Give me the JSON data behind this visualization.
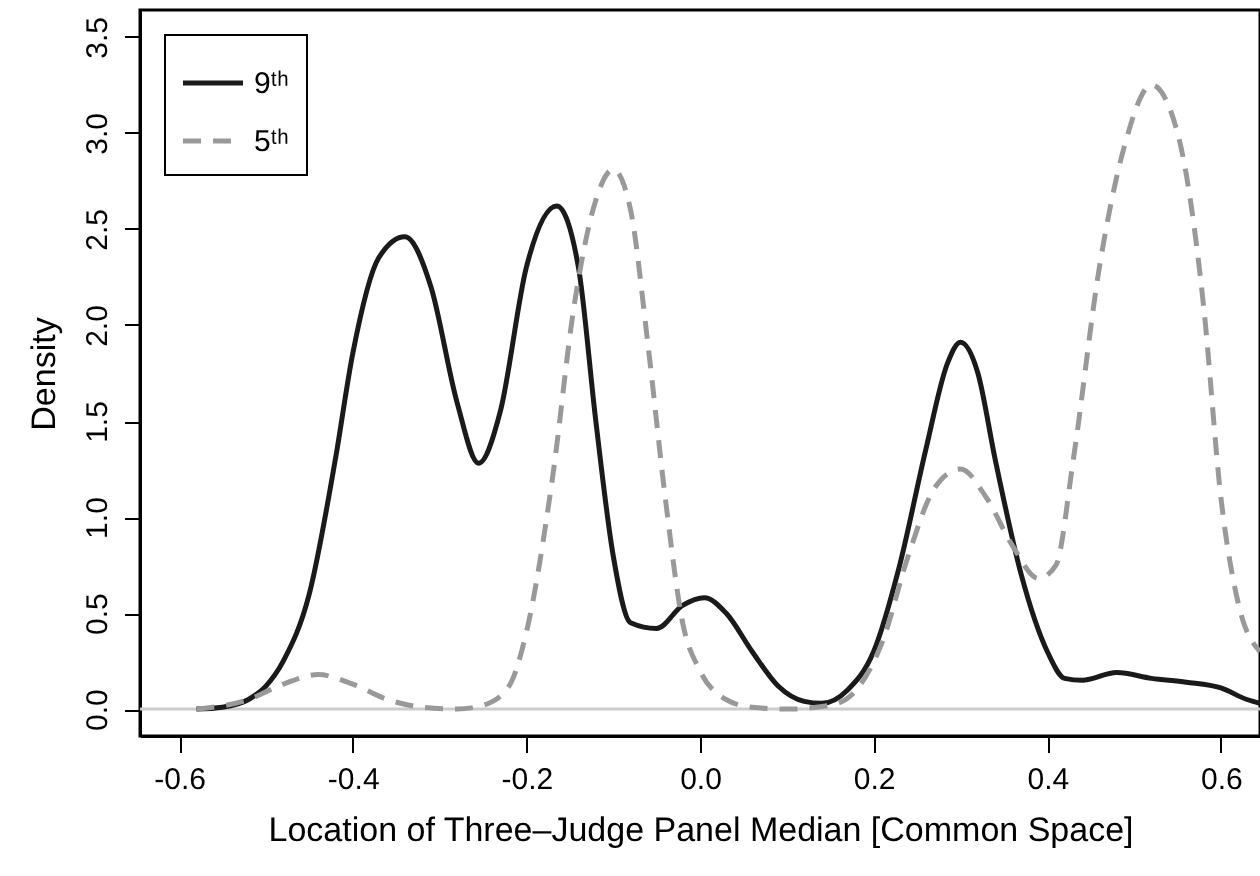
{
  "chart_data": {
    "type": "line",
    "xlabel": "Location of Three–Judge Panel Median [Common Space]",
    "ylabel": "Density",
    "xlim": [
      -0.645,
      0.645
    ],
    "xticks": [
      -0.6,
      -0.4,
      -0.2,
      {
        "value": 0,
        "label": "0.0"
      },
      0.2,
      0.4,
      0.6
    ],
    "ylim": [
      -0.14,
      3.64
    ],
    "yticks": [
      {
        "value": 0,
        "label": "0.0"
      },
      0.5,
      {
        "value": 1,
        "label": "1.0"
      },
      1.5,
      {
        "value": 2,
        "label": "2.0"
      },
      2.5,
      {
        "value": 3,
        "label": "3.0"
      },
      3.5
    ],
    "grid": false,
    "legend": "top left",
    "ref_lines": [
      {
        "axis": "y",
        "value": 0,
        "color": "#cccccc"
      }
    ],
    "series": [
      {
        "name": "9ᵗʰ",
        "color": "#1a1a1a",
        "line_style": "solid",
        "x": [
          -0.58,
          -0.55,
          -0.52,
          -0.5,
          -0.48,
          -0.45,
          -0.42,
          -0.4,
          -0.37,
          -0.34,
          -0.31,
          -0.28,
          -0.255,
          -0.23,
          -0.2,
          -0.165,
          -0.14,
          -0.12,
          -0.1,
          -0.08,
          -0.05,
          -0.02,
          0.005,
          0.03,
          0.06,
          0.09,
          0.12,
          0.14,
          0.17,
          0.2,
          0.23,
          0.26,
          0.285,
          0.3,
          0.32,
          0.34,
          0.37,
          0.4,
          0.42,
          0.44,
          0.48,
          0.52,
          0.56,
          0.6,
          0.63,
          0.645
        ],
        "values": [
          0,
          0.01,
          0.05,
          0.12,
          0.25,
          0.6,
          1.3,
          1.85,
          2.35,
          2.46,
          2.2,
          1.6,
          1.28,
          1.55,
          2.3,
          2.62,
          2.3,
          1.5,
          0.8,
          0.45,
          0.42,
          0.54,
          0.58,
          0.5,
          0.3,
          0.12,
          0.04,
          0.03,
          0.1,
          0.3,
          0.75,
          1.35,
          1.8,
          1.91,
          1.75,
          1.3,
          0.7,
          0.3,
          0.16,
          0.15,
          0.19,
          0.16,
          0.14,
          0.11,
          0.05,
          0.03
        ]
      },
      {
        "name": "5ᵗʰ",
        "color": "#999999",
        "line_style": "dashed",
        "x": [
          -0.58,
          -0.52,
          -0.48,
          -0.44,
          -0.4,
          -0.36,
          -0.32,
          -0.28,
          -0.25,
          -0.22,
          -0.2,
          -0.17,
          -0.145,
          -0.12,
          -0.1,
          -0.08,
          -0.06,
          -0.04,
          -0.02,
          0.0,
          0.03,
          0.06,
          0.1,
          0.15,
          0.18,
          0.21,
          0.24,
          0.27,
          0.3,
          0.33,
          0.36,
          0.39,
          0.41,
          0.43,
          0.46,
          0.49,
          0.52,
          0.55,
          0.58,
          0.6,
          0.62,
          0.645
        ],
        "values": [
          0,
          0.05,
          0.13,
          0.18,
          0.13,
          0.05,
          0.01,
          0,
          0.02,
          0.12,
          0.4,
          1.2,
          2.1,
          2.65,
          2.81,
          2.6,
          1.9,
          1.1,
          0.45,
          0.2,
          0.05,
          0.01,
          0,
          0.02,
          0.1,
          0.35,
          0.8,
          1.15,
          1.25,
          1.1,
          0.85,
          0.68,
          0.75,
          1.3,
          2.3,
          2.95,
          3.25,
          3.0,
          2.1,
          1.1,
          0.55,
          0.3
        ]
      }
    ]
  }
}
